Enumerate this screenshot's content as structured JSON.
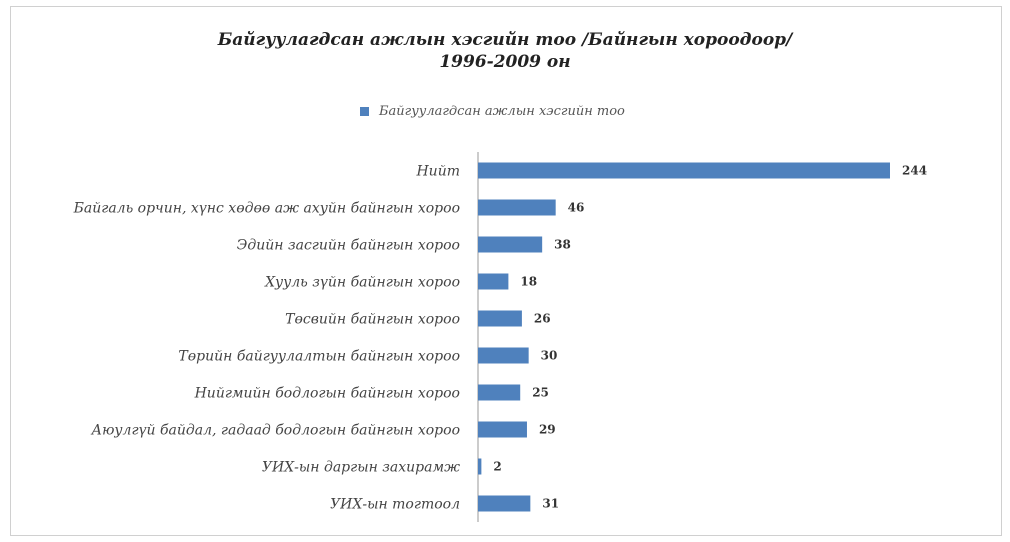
{
  "chart_data": {
    "type": "bar",
    "orientation": "horizontal",
    "title": "Байгуулагдсан ажлын хэсгийн тоо /Байнгын хороодоор/",
    "subtitle": "1996-2009 он",
    "legend": {
      "label": "Байгуулагдсан ажлын хэсгийн тоо",
      "position": "top"
    },
    "series_color": "#4f81bd",
    "categories": [
      "Нийт",
      "Байгаль орчин, хүнс хөдөө аж ахуйн байнгын хороо",
      "Эдийн засгийн байнгын хороо",
      "Хууль зүйн байнгын хороо",
      "Төсвийн байнгын хороо",
      "Төрийн байгуулалтын байнгын хороо",
      "Нийгмийн бодлогын байнгын хороо",
      "Аюулгүй байдал, гадаад бодлогын байнгын хороо",
      "УИХ-ын даргын захирамж",
      "УИХ-ын тогтоол"
    ],
    "values": [
      244,
      46,
      38,
      18,
      26,
      30,
      25,
      29,
      2,
      31
    ],
    "grid": false
  }
}
